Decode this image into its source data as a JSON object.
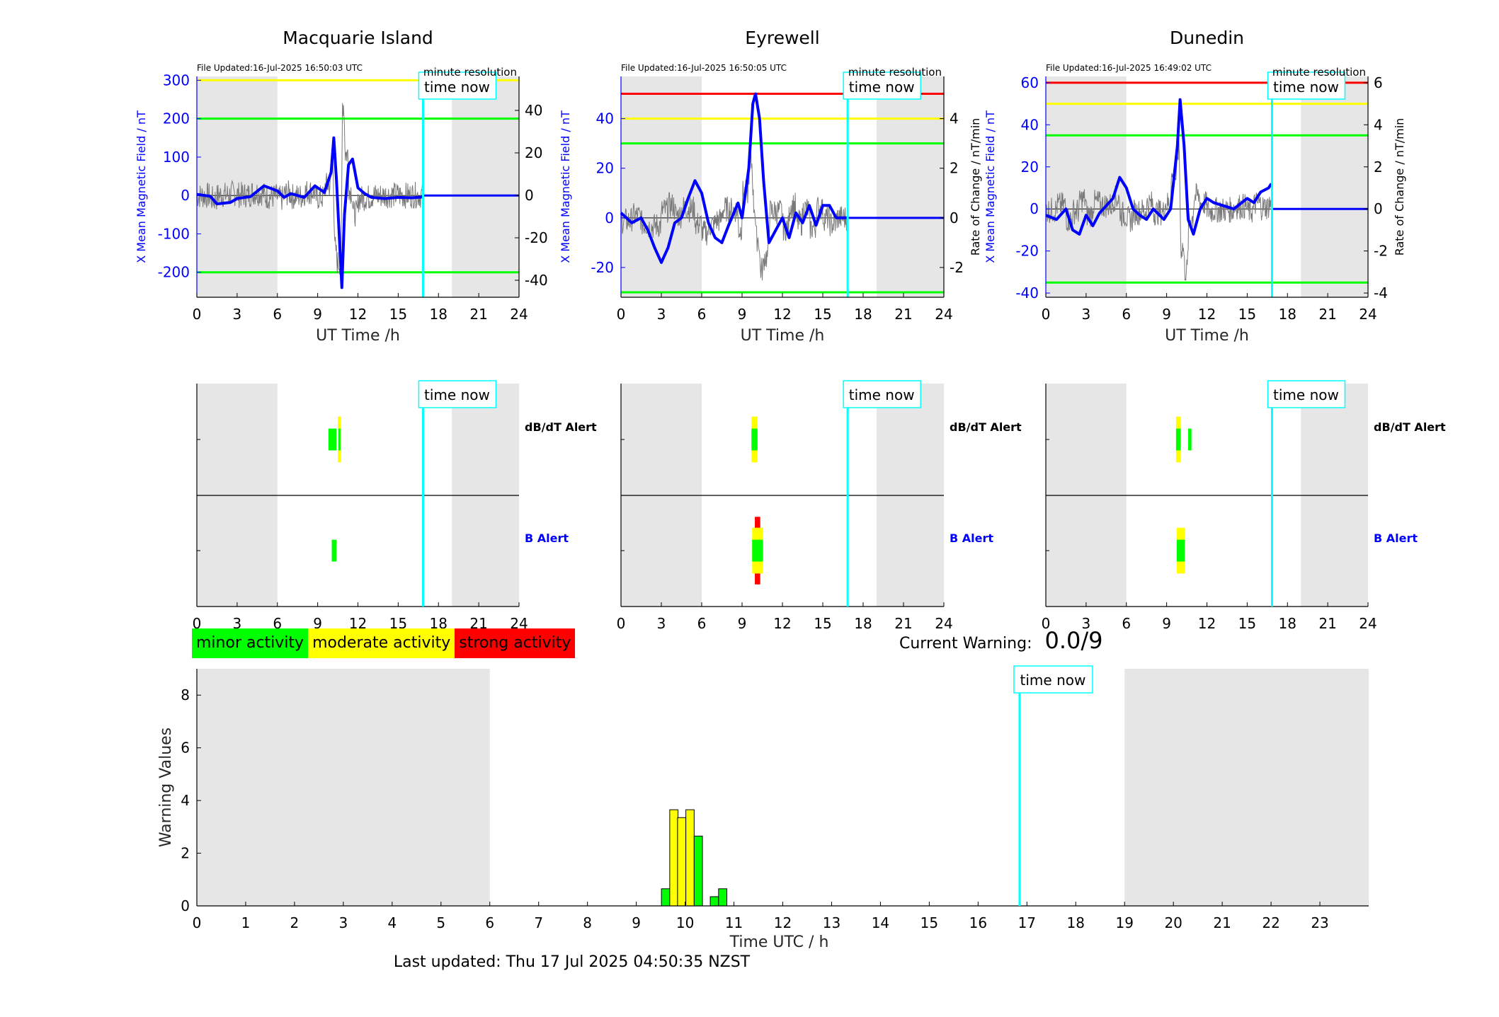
{
  "stations": [
    {
      "name": "Macquarie Island",
      "file_updated": "File Updated:16-Jul-2025 16:50:03 UTC",
      "left_axis_label": "X Mean Magnetic Field / nT",
      "right_axis_label": "Rate of Change / nT/min",
      "right_axis_label_visible": false,
      "resolution_label": "minute resolution",
      "x_axis_label": "UT Time /h",
      "x_ticks": [
        0,
        3,
        6,
        9,
        12,
        15,
        18,
        21,
        24
      ],
      "left_ylim": [
        -265,
        310
      ],
      "left_yticks": [
        -200,
        -100,
        0,
        100,
        200,
        300
      ],
      "right_ylim": [
        -48,
        56
      ],
      "right_yticks": [
        -40,
        -20,
        0,
        20,
        40
      ],
      "threshold_lines": [
        {
          "value": 300,
          "color": "#ffff00"
        },
        {
          "value": 200,
          "color": "#00ff00"
        },
        {
          "value": -200,
          "color": "#00ff00"
        }
      ],
      "field_trace": [
        [
          0,
          3
        ],
        [
          1,
          -2
        ],
        [
          1.5,
          -22
        ],
        [
          2.5,
          -18
        ],
        [
          3,
          -8
        ],
        [
          4,
          -3
        ],
        [
          5,
          25
        ],
        [
          6,
          12
        ],
        [
          6.5,
          -5
        ],
        [
          7,
          5
        ],
        [
          8,
          -5
        ],
        [
          8.8,
          25
        ],
        [
          9.5,
          8
        ],
        [
          10,
          60
        ],
        [
          10.2,
          150
        ],
        [
          10.4,
          40
        ],
        [
          10.6,
          -100
        ],
        [
          10.8,
          -240
        ],
        [
          11,
          -50
        ],
        [
          11.3,
          80
        ],
        [
          11.6,
          95
        ],
        [
          12,
          20
        ],
        [
          12.5,
          5
        ],
        [
          13,
          -5
        ],
        [
          14,
          -8
        ],
        [
          15,
          -5
        ],
        [
          16,
          -6
        ],
        [
          16.8,
          -4
        ]
      ],
      "db_dt_alert": [
        {
          "start": 9.8,
          "end": 10.4,
          "color": "#00ff00",
          "h": 0.2
        },
        {
          "start": 10.5,
          "end": 10.75,
          "color": "#ffff00",
          "h": 0.42
        },
        {
          "start": 10.55,
          "end": 10.7,
          "color": "#00ff00",
          "h": 0.2
        }
      ],
      "b_alert": [
        {
          "start": 10.05,
          "end": 10.4,
          "color": "#00ff00",
          "h": 0.2
        }
      ],
      "alert_labels": {
        "db_dt": "dB/dT Alert",
        "b": "B Alert"
      }
    },
    {
      "name": "Eyrewell",
      "file_updated": "File Updated:16-Jul-2025 16:50:05 UTC",
      "left_axis_label": "X Mean Magnetic Field / nT",
      "right_axis_label": "Rate of Change / nT/min",
      "right_axis_label_visible": true,
      "resolution_label": "minute resolution",
      "x_axis_label": "UT Time /h",
      "x_ticks": [
        0,
        3,
        6,
        9,
        12,
        15,
        18,
        21,
        24
      ],
      "left_ylim": [
        -32,
        57
      ],
      "left_yticks": [
        -20,
        0,
        20,
        40
      ],
      "right_ylim": [
        -3.2,
        5.7
      ],
      "right_yticks": [
        -2,
        0,
        2,
        4
      ],
      "threshold_lines": [
        {
          "value": 50,
          "color": "#ff0000"
        },
        {
          "value": 40,
          "color": "#ffff00"
        },
        {
          "value": 30,
          "color": "#00ff00"
        },
        {
          "value": -30,
          "color": "#00ff00"
        }
      ],
      "field_trace": [
        [
          0,
          2
        ],
        [
          0.8,
          -2
        ],
        [
          1.5,
          0
        ],
        [
          2,
          -5
        ],
        [
          2.5,
          -12
        ],
        [
          3,
          -18
        ],
        [
          3.5,
          -12
        ],
        [
          4,
          -2
        ],
        [
          4.5,
          0
        ],
        [
          5,
          8
        ],
        [
          5.5,
          15
        ],
        [
          6,
          10
        ],
        [
          6.5,
          -2
        ],
        [
          7,
          -8
        ],
        [
          7.5,
          -10
        ],
        [
          8,
          -3
        ],
        [
          8.7,
          6
        ],
        [
          9,
          0
        ],
        [
          9.5,
          20
        ],
        [
          9.8,
          46
        ],
        [
          10,
          50
        ],
        [
          10.3,
          40
        ],
        [
          10.6,
          15
        ],
        [
          11,
          -10
        ],
        [
          11.5,
          -5
        ],
        [
          12,
          0
        ],
        [
          12.5,
          -8
        ],
        [
          13,
          2
        ],
        [
          13.5,
          -2
        ],
        [
          14,
          5
        ],
        [
          14.5,
          -3
        ],
        [
          15,
          5
        ],
        [
          15.5,
          5
        ],
        [
          16,
          0
        ],
        [
          16.8,
          0
        ]
      ],
      "db_dt_alert": [
        {
          "start": 9.7,
          "end": 10.15,
          "color": "#ffff00",
          "h": 0.42
        },
        {
          "start": 9.7,
          "end": 10.15,
          "color": "#00ff00",
          "h": 0.2
        }
      ],
      "b_alert": [
        {
          "start": 9.95,
          "end": 10.35,
          "color": "#ff0000",
          "h": 0.62
        },
        {
          "start": 9.75,
          "end": 10.55,
          "color": "#ffff00",
          "h": 0.42
        },
        {
          "start": 9.75,
          "end": 10.55,
          "color": "#00ff00",
          "h": 0.2
        }
      ],
      "alert_labels": {
        "db_dt": "dB/dT Alert",
        "b": "B Alert"
      }
    },
    {
      "name": "Dunedin",
      "file_updated": "File Updated:16-Jul-2025 16:49:02 UTC",
      "left_axis_label": "X Mean Magnetic Field / nT",
      "right_axis_label": "Rate of Change / nT/min",
      "right_axis_label_visible": true,
      "resolution_label": "minute resolution",
      "x_axis_label": "UT Time /h",
      "x_ticks": [
        0,
        3,
        6,
        9,
        12,
        15,
        18,
        21,
        24
      ],
      "left_ylim": [
        -42,
        63
      ],
      "left_yticks": [
        -40,
        -20,
        0,
        20,
        40,
        60
      ],
      "right_ylim": [
        -4.2,
        6.3
      ],
      "right_yticks": [
        -4,
        -2,
        0,
        2,
        4,
        6
      ],
      "threshold_lines": [
        {
          "value": 60,
          "color": "#ff0000"
        },
        {
          "value": 50,
          "color": "#ffff00"
        },
        {
          "value": 35,
          "color": "#00ff00"
        },
        {
          "value": -35,
          "color": "#00ff00"
        }
      ],
      "field_trace": [
        [
          0,
          -3
        ],
        [
          0.8,
          -5
        ],
        [
          1.5,
          0
        ],
        [
          2,
          -10
        ],
        [
          2.5,
          -12
        ],
        [
          3,
          -3
        ],
        [
          3.5,
          -8
        ],
        [
          4,
          -2
        ],
        [
          5,
          5
        ],
        [
          5.5,
          15
        ],
        [
          6,
          10
        ],
        [
          6.5,
          0
        ],
        [
          7,
          -3
        ],
        [
          7.5,
          -5
        ],
        [
          8,
          0
        ],
        [
          8.8,
          -5
        ],
        [
          9.3,
          0
        ],
        [
          9.8,
          30
        ],
        [
          10,
          52
        ],
        [
          10.3,
          30
        ],
        [
          10.6,
          -5
        ],
        [
          11,
          -12
        ],
        [
          11.5,
          0
        ],
        [
          12,
          5
        ],
        [
          12.5,
          3
        ],
        [
          13,
          2
        ],
        [
          14,
          0
        ],
        [
          15,
          5
        ],
        [
          15.5,
          3
        ],
        [
          16,
          8
        ],
        [
          16.6,
          10
        ],
        [
          16.8,
          12
        ]
      ],
      "db_dt_alert": [
        {
          "start": 9.7,
          "end": 10.05,
          "color": "#ffff00",
          "h": 0.42
        },
        {
          "start": 9.7,
          "end": 10.05,
          "color": "#00ff00",
          "h": 0.2
        },
        {
          "start": 10.6,
          "end": 10.85,
          "color": "#00ff00",
          "h": 0.2
        }
      ],
      "b_alert": [
        {
          "start": 9.75,
          "end": 10.35,
          "color": "#ffff00",
          "h": 0.42
        },
        {
          "start": 9.75,
          "end": 10.35,
          "color": "#00ff00",
          "h": 0.2
        }
      ],
      "alert_labels": {
        "db_dt": "dB/dT Alert",
        "b": "B Alert"
      }
    }
  ],
  "time_now_label": "time now",
  "time_now_hour": 16.85,
  "night_shading": [
    [
      0,
      6
    ],
    [
      19,
      24
    ]
  ],
  "legend": [
    {
      "label": "minor activity",
      "color": "#00ff00"
    },
    {
      "label": "moderate activity",
      "color": "#ffff00"
    },
    {
      "label": "strong activity",
      "color": "#ff0000"
    }
  ],
  "current_warning": {
    "label": "Current Warning:",
    "value": "0.0/9"
  },
  "chart_data": {
    "type": "bar",
    "title": "",
    "xlabel": "Time UTC / h",
    "ylabel": "Warning Values",
    "xlim": [
      0,
      24
    ],
    "ylim": [
      0,
      9
    ],
    "x_ticks": [
      0,
      1,
      2,
      3,
      4,
      5,
      6,
      7,
      8,
      9,
      10,
      11,
      12,
      13,
      14,
      15,
      16,
      17,
      18,
      19,
      20,
      21,
      22,
      23
    ],
    "y_ticks": [
      0,
      2,
      4,
      6,
      8
    ],
    "bars": [
      {
        "x": 9.6,
        "value": 0.65,
        "color": "#00ff00"
      },
      {
        "x": 9.77,
        "value": 3.65,
        "color": "#ffff00"
      },
      {
        "x": 9.93,
        "value": 3.35,
        "color": "#ffff00"
      },
      {
        "x": 10.1,
        "value": 3.65,
        "color": "#ffff00"
      },
      {
        "x": 10.27,
        "value": 2.65,
        "color": "#00ff00"
      },
      {
        "x": 10.6,
        "value": 0.35,
        "color": "#00ff00"
      },
      {
        "x": 10.77,
        "value": 0.65,
        "color": "#00ff00"
      }
    ],
    "grid": false
  },
  "last_updated": "Last updated: Thu 17 Jul 2025 04:50:35 NZST"
}
